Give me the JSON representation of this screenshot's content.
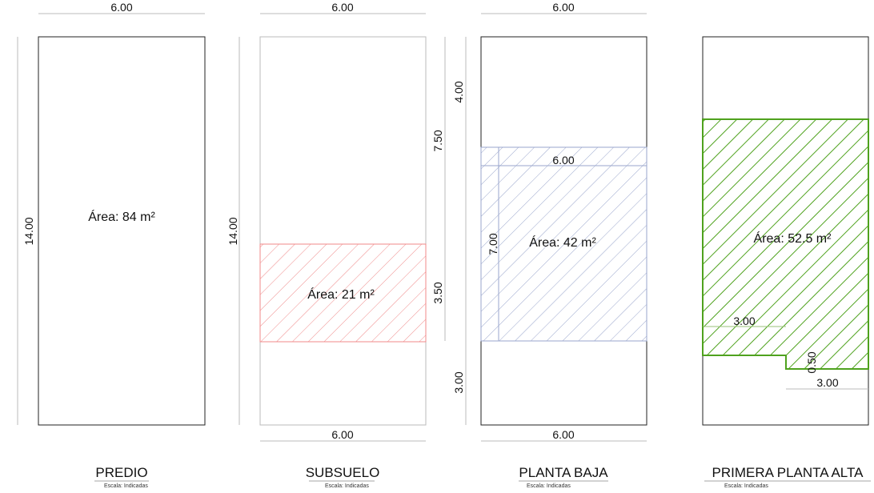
{
  "predio": {
    "title": "PREDIO",
    "scale": "Escala: Indicadas",
    "dim_top": "6.00",
    "dim_left": "14.00",
    "area": "Área: 84 m²"
  },
  "subsuelo": {
    "title": "SUBSUELO",
    "scale": "Escala: Indicadas",
    "dim_top": "6.00",
    "dim_left": "14.00",
    "dim_bottom": "6.00",
    "area": "Área: 21 m²",
    "hatch_color": "#f08080"
  },
  "planta_baja": {
    "title": "PLANTA BAJA",
    "scale": "Escala: Indicadas",
    "dim_top": "6.00",
    "dim_left_top": "4.00",
    "dim_left_upper": "7.50",
    "dim_left_mid": "3.50",
    "dim_left_bottom": "3.00",
    "dim_inner_width": "6.00",
    "dim_inner_height": "7.00",
    "dim_bottom": "6.00",
    "area": "Área: 42 m²",
    "hatch_color": "#8090c0"
  },
  "primera_planta_alta": {
    "title": "PRIMERA PLANTA ALTA",
    "scale": "Escala: Indicadas",
    "area": "Área: 52.5 m²",
    "dim_step_width": "3.00",
    "dim_step_height": "0.50",
    "dim_bottom_right": "3.00",
    "hatch_color": "#5aaa2a"
  }
}
